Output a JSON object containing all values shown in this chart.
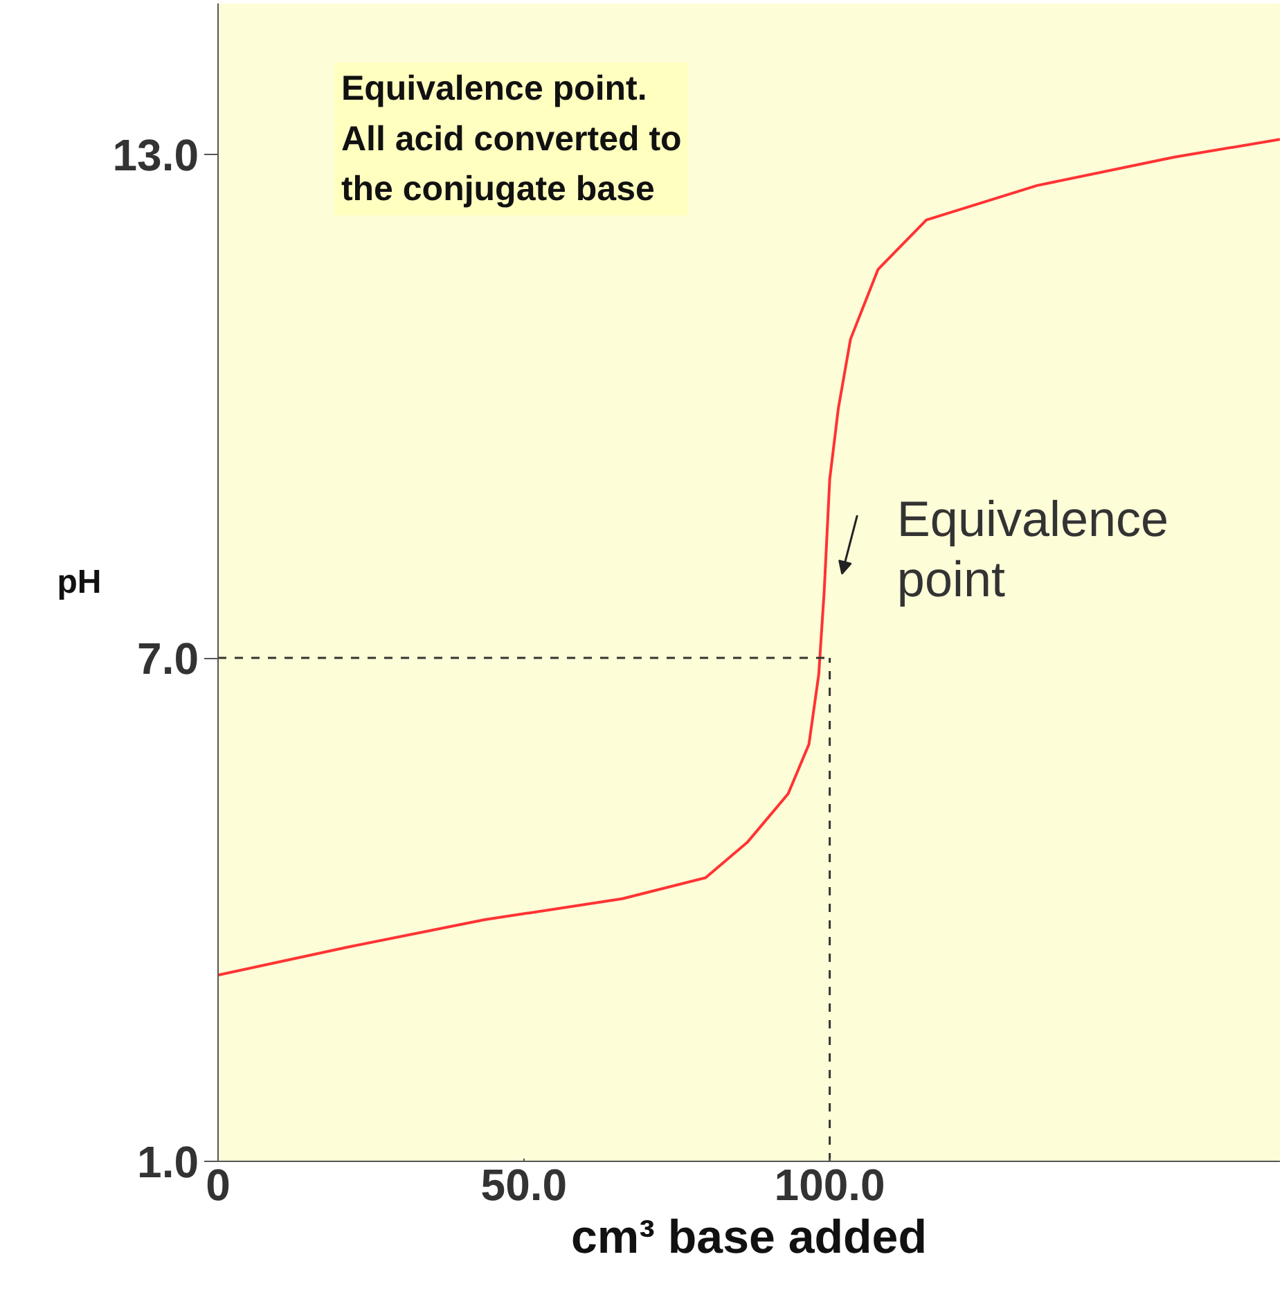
{
  "chart_data": {
    "type": "line",
    "xlabel": "cm³ base added",
    "ylabel": "pH",
    "x": [
      0,
      21,
      43.6,
      66.1,
      79.7,
      86.5,
      93.2,
      96.6,
      98.2,
      99.1,
      100,
      101.4,
      103.4,
      107.9,
      115.8,
      133.9,
      156.4,
      173.6
    ],
    "series": [
      {
        "color": "#ff3333",
        "values": [
          3.22,
          3.55,
          3.88,
          4.13,
          4.38,
          4.8,
          5.38,
          5.97,
          6.8,
          7.8,
          9.13,
          9.97,
          10.8,
          11.63,
          12.22,
          12.63,
          12.97,
          13.18
        ]
      }
    ],
    "xlim": [
      0,
      173.6
    ],
    "ylim": [
      1,
      14.8
    ],
    "xticks": [
      0,
      {
        "value": 50,
        "label": "50.0"
      },
      {
        "value": 100,
        "label": "100.0"
      }
    ],
    "yticks": [
      {
        "value": 1,
        "label": "1.0"
      },
      {
        "value": 7,
        "label": "7.0"
      },
      {
        "value": 13,
        "label": "13.0"
      }
    ],
    "ref_lines": [
      {
        "axis": "y",
        "value": 7,
        "line_style": "dashed",
        "color": "#333333"
      },
      {
        "axis": "x",
        "value": 100,
        "line_style": "dashed",
        "color": "#333333"
      }
    ],
    "annotations": [
      "Equivalence point.\nAll acid converted to\nthe conjugate base",
      {
        "text": "Equivalence\npoint",
        "x": 100,
        "y": 8
      }
    ],
    "grid": false,
    "marker": "none",
    "line_style": "solid"
  }
}
